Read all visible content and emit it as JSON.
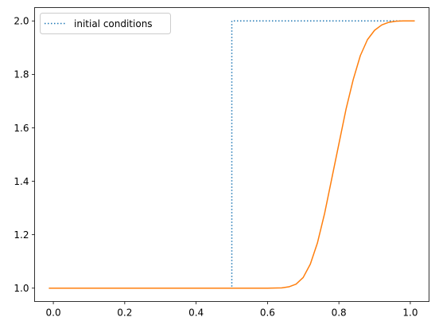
{
  "chart_data": {
    "type": "line",
    "title": "",
    "xlabel": "",
    "ylabel": "",
    "xlim": [
      -0.0525,
      1.0525
    ],
    "ylim": [
      0.95,
      2.05
    ],
    "xticks": [
      0.0,
      0.2,
      0.4,
      0.6,
      0.8,
      1.0
    ],
    "xtick_labels": [
      "0.0",
      "0.2",
      "0.4",
      "0.6",
      "0.8",
      "1.0"
    ],
    "yticks": [
      1.0,
      1.2,
      1.4,
      1.6,
      1.8,
      2.0
    ],
    "ytick_labels": [
      "1.0",
      "1.2",
      "1.4",
      "1.6",
      "1.8",
      "2.0"
    ],
    "grid": false,
    "legend": {
      "placement": "top-left",
      "entries": [
        "initial conditions"
      ]
    },
    "series": [
      {
        "name": "initial conditions",
        "color": "#1f77b4",
        "style": "dotted",
        "x": [
          -0.0125,
          0.5,
          0.5,
          1.0125
        ],
        "y": [
          1.0,
          1.0,
          2.0,
          2.0
        ]
      },
      {
        "color": "#ff7f0e",
        "style": "solid",
        "x": [
          -0.0125,
          0.6,
          0.64,
          0.66,
          0.68,
          0.7,
          0.72,
          0.74,
          0.76,
          0.78,
          0.8,
          0.82,
          0.84,
          0.86,
          0.88,
          0.9,
          0.92,
          0.94,
          0.96,
          0.98,
          1.0,
          1.0125
        ],
        "y": [
          1.0,
          1.0,
          1.001,
          1.005,
          1.015,
          1.04,
          1.09,
          1.17,
          1.28,
          1.41,
          1.54,
          1.67,
          1.78,
          1.87,
          1.93,
          1.965,
          1.985,
          1.995,
          1.999,
          2.0,
          2.0,
          2.0
        ]
      }
    ]
  }
}
